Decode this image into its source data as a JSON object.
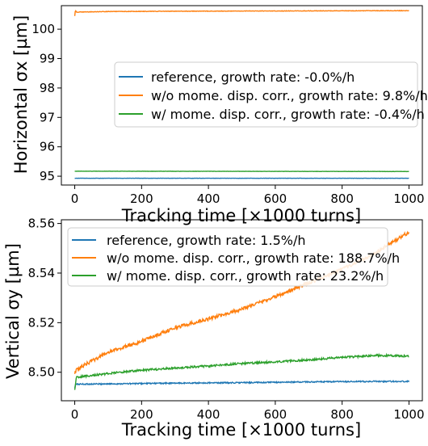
{
  "chart_data": [
    {
      "type": "line",
      "ylabel": "Horizontal σx [µm]",
      "xlabel": "Tracking time [×1000 turns]",
      "xlim": [
        -40,
        1040
      ],
      "ylim": [
        94.7,
        100.8
      ],
      "xticks": [
        0,
        200,
        400,
        600,
        800,
        1000
      ],
      "yticks": [
        95,
        96,
        97,
        98,
        99,
        100
      ],
      "legend_position": "center-right",
      "series": [
        {
          "name": "reference, growth rate: -0.0%/h",
          "color": "#1f77b4",
          "x": [
            0,
            1000
          ],
          "y": [
            94.93,
            94.93
          ],
          "noise": 0.004
        },
        {
          "name": "w/o mome. disp. corr., growth rate: 9.8%/h",
          "color": "#ff7f0e",
          "x": [
            0,
            2,
            5,
            100,
            300,
            600,
            1000
          ],
          "y": [
            100.45,
            100.65,
            100.58,
            100.6,
            100.61,
            100.62,
            100.63
          ],
          "noise": 0.008
        },
        {
          "name": "w/ mome. disp. corr., growth rate: -0.4%/h",
          "color": "#2ca02c",
          "x": [
            0,
            1000
          ],
          "y": [
            95.17,
            95.16
          ],
          "noise": 0.004
        }
      ]
    },
    {
      "type": "line",
      "ylabel": "Vertical σy [µm]",
      "xlabel": "Tracking time [×1000 turns]",
      "xlim": [
        -40,
        1040
      ],
      "ylim": [
        8.4885,
        8.5615
      ],
      "xticks": [
        0,
        200,
        400,
        600,
        800,
        1000
      ],
      "yticks": [
        8.5,
        8.52,
        8.54,
        8.56
      ],
      "legend_position": "top-left",
      "series": [
        {
          "name": "reference, growth rate: 1.5%/h",
          "color": "#1f77b4",
          "x": [
            0,
            2,
            10,
            100,
            300,
            500,
            700,
            900,
            1000
          ],
          "y": [
            8.4935,
            8.4951,
            8.4952,
            8.4953,
            8.4956,
            8.4958,
            8.4961,
            8.4963,
            8.4963
          ],
          "noise": 0.00025
        },
        {
          "name": "w/o mome. disp. corr., growth rate: 188.7%/h",
          "color": "#ff7f0e",
          "x": [
            0,
            5,
            50,
            100,
            200,
            300,
            400,
            500,
            600,
            700,
            800,
            900,
            950,
            1000
          ],
          "y": [
            8.4995,
            8.501,
            8.5045,
            8.508,
            8.5125,
            8.518,
            8.5215,
            8.5255,
            8.5305,
            8.536,
            8.5415,
            8.548,
            8.5525,
            8.5565
          ],
          "noise": 0.0007
        },
        {
          "name": "w/ mome. disp. corr., growth rate: 23.2%/h",
          "color": "#2ca02c",
          "x": [
            0,
            5,
            100,
            200,
            300,
            400,
            500,
            600,
            700,
            800,
            900,
            1000
          ],
          "y": [
            8.4925,
            8.498,
            8.4995,
            8.5008,
            8.5017,
            8.5025,
            8.5035,
            8.5042,
            8.505,
            8.506,
            8.5068,
            8.5065
          ],
          "noise": 0.0004
        }
      ]
    }
  ]
}
